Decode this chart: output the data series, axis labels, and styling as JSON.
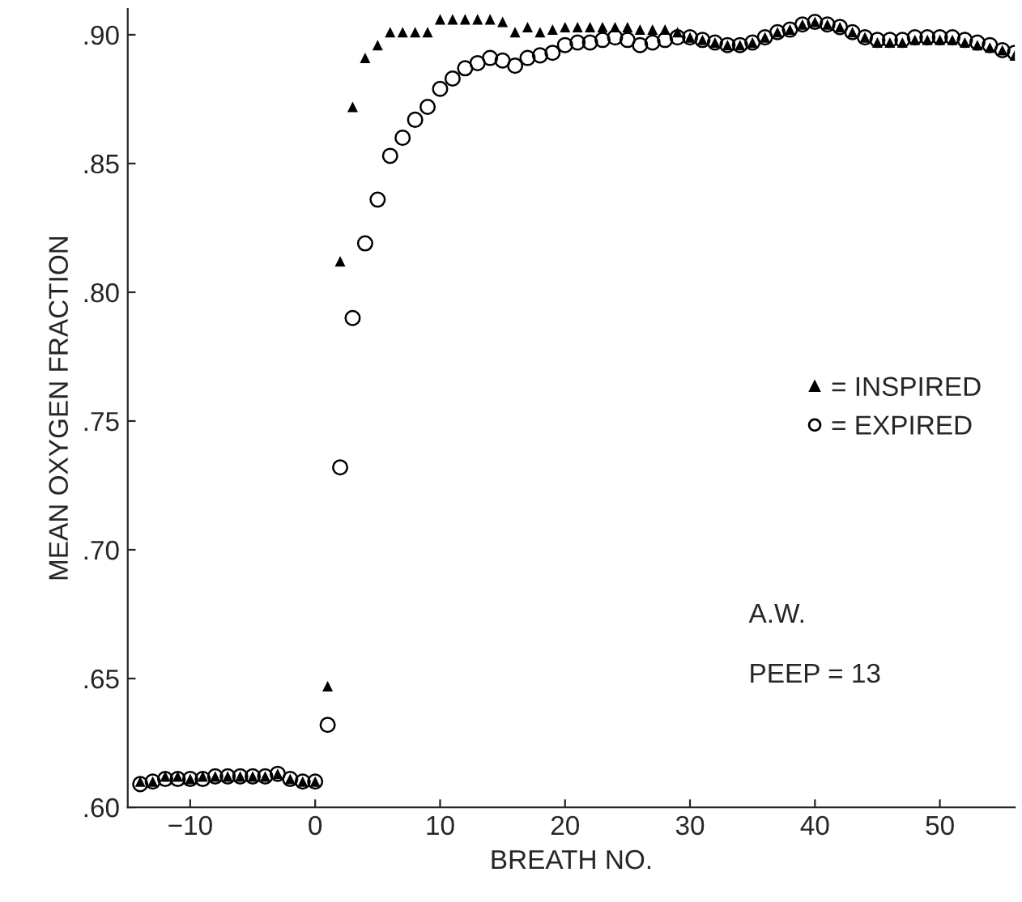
{
  "chart_data": {
    "type": "scatter",
    "xlabel": "BREATH NO.",
    "ylabel": "MEAN OXYGEN FRACTION",
    "x": [
      -14,
      -13,
      -12,
      -11,
      -10,
      -9,
      -8,
      -7,
      -6,
      -5,
      -4,
      -3,
      -2,
      -1,
      0,
      1,
      2,
      3,
      4,
      5,
      6,
      7,
      8,
      9,
      10,
      11,
      12,
      13,
      14,
      15,
      16,
      17,
      18,
      19,
      20,
      21,
      22,
      23,
      24,
      25,
      26,
      27,
      28,
      29,
      30,
      31,
      32,
      33,
      34,
      35,
      36,
      37,
      38,
      39,
      40,
      41,
      42,
      43,
      44,
      45,
      46,
      47,
      48,
      49,
      50,
      51,
      52,
      53,
      54,
      55,
      56
    ],
    "series": [
      {
        "name": "= INSPIRED",
        "color": "#000000",
        "marker": "triangle",
        "values": [
          0.61,
          0.61,
          0.612,
          0.612,
          0.611,
          0.612,
          0.612,
          0.612,
          0.612,
          0.612,
          0.612,
          0.613,
          0.611,
          0.61,
          0.61,
          0.647,
          0.812,
          0.872,
          0.891,
          0.896,
          0.901,
          0.901,
          0.901,
          0.901,
          0.906,
          0.906,
          0.906,
          0.906,
          0.906,
          0.905,
          0.901,
          0.903,
          0.901,
          0.902,
          0.903,
          0.903,
          0.903,
          0.903,
          0.903,
          0.903,
          0.902,
          0.902,
          0.902,
          0.901,
          0.899,
          0.898,
          0.897,
          0.896,
          0.896,
          0.897,
          0.899,
          0.901,
          0.902,
          0.904,
          0.905,
          0.904,
          0.903,
          0.901,
          0.899,
          0.897,
          0.897,
          0.897,
          0.898,
          0.898,
          0.898,
          0.898,
          0.897,
          0.896,
          0.895,
          0.894,
          0.892
        ]
      },
      {
        "name": "= EXPIRED",
        "color": "#000000",
        "marker": "circle",
        "values": [
          0.609,
          0.61,
          0.611,
          0.611,
          0.611,
          0.611,
          0.612,
          0.612,
          0.612,
          0.612,
          0.612,
          0.613,
          0.611,
          0.61,
          0.61,
          0.632,
          0.732,
          0.79,
          0.819,
          0.836,
          0.853,
          0.86,
          0.867,
          0.872,
          0.879,
          0.883,
          0.887,
          0.889,
          0.891,
          0.89,
          0.888,
          0.891,
          0.892,
          0.893,
          0.896,
          0.897,
          0.897,
          0.898,
          0.899,
          0.898,
          0.896,
          0.897,
          0.898,
          0.899,
          0.899,
          0.898,
          0.897,
          0.896,
          0.896,
          0.897,
          0.899,
          0.901,
          0.902,
          0.904,
          0.905,
          0.904,
          0.903,
          0.901,
          0.899,
          0.898,
          0.898,
          0.898,
          0.899,
          0.899,
          0.899,
          0.899,
          0.898,
          0.897,
          0.896,
          0.894,
          0.893
        ]
      }
    ],
    "xlim": [
      -15,
      56
    ],
    "ylim": [
      0.6,
      0.91
    ],
    "xticks": [
      {
        "value": -10,
        "label": "−10"
      },
      0,
      10,
      20,
      30,
      40,
      50
    ],
    "yticks": [
      {
        "value": 0.6,
        "label": ".60"
      },
      {
        "value": 0.65,
        "label": ".65"
      },
      {
        "value": 0.7,
        "label": ".70"
      },
      {
        "value": 0.75,
        "label": ".75"
      },
      {
        "value": 0.8,
        "label": ".80"
      },
      {
        "value": 0.85,
        "label": ".85"
      },
      {
        "value": 0.9,
        "label": ".90"
      }
    ],
    "grid": false,
    "legend": "right",
    "annotations": [
      "A.W.",
      "PEEP = 13"
    ]
  }
}
